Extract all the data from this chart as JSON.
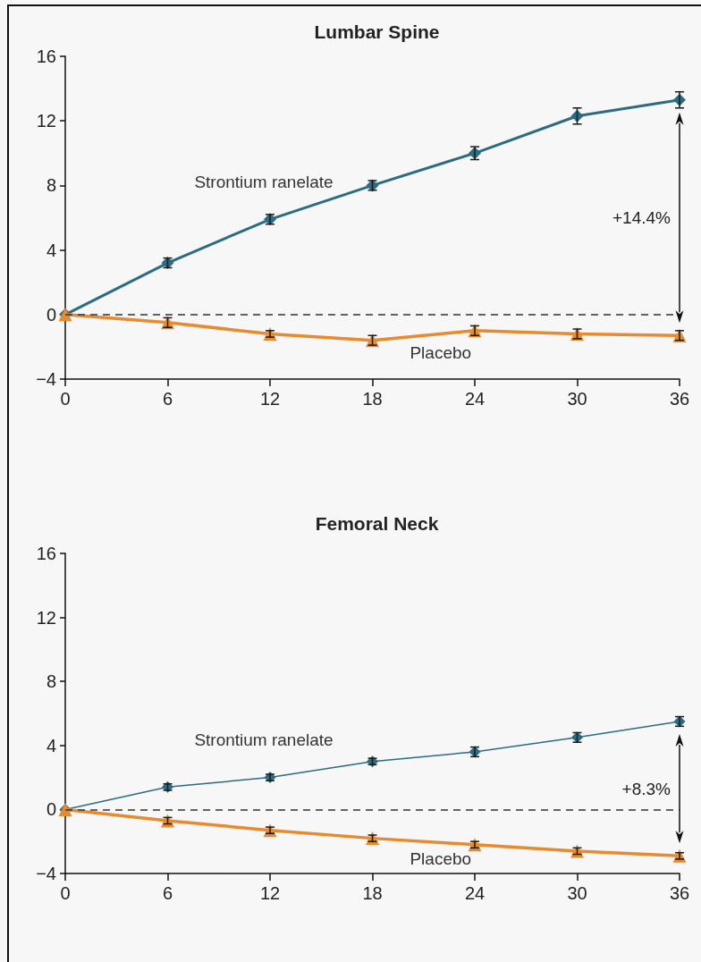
{
  "chart_data": [
    {
      "type": "line",
      "title": "Lumbar Spine",
      "x": [
        0,
        6,
        12,
        18,
        24,
        30,
        36
      ],
      "series": [
        {
          "name": "Strontium ranelate",
          "color": "#2b6c83",
          "marker": "diamond",
          "values": [
            0,
            3.2,
            5.9,
            8.0,
            10.0,
            12.3,
            13.3
          ],
          "errors": [
            null,
            0.3,
            0.3,
            0.3,
            0.4,
            0.5,
            0.5
          ]
        },
        {
          "name": "Placebo",
          "color": "#e88a2e",
          "marker": "triangle",
          "values": [
            0,
            -0.5,
            -1.2,
            -1.6,
            -1.0,
            -1.2,
            -1.3
          ],
          "errors": [
            null,
            0.3,
            0.2,
            0.3,
            0.3,
            0.3,
            0.3
          ]
        }
      ],
      "xlim": [
        0,
        36
      ],
      "xticks": [
        0,
        6,
        12,
        18,
        24,
        30,
        36
      ],
      "ylim": [
        -4,
        16
      ],
      "yticks": [
        {
          "value": -4,
          "label": "−4"
        },
        0,
        4,
        8,
        12,
        16
      ],
      "ref_lines": [
        {
          "axis": "y",
          "value": 0,
          "color": "#333333",
          "line_style": "dashed"
        }
      ],
      "annotations": [
        "+14.4%"
      ]
    },
    {
      "type": "line",
      "title": "Femoral Neck",
      "x": [
        0,
        6,
        12,
        18,
        24,
        30,
        36
      ],
      "series": [
        {
          "name": "Strontium ranelate",
          "color": "#2b6c83",
          "marker": "diamond",
          "values": [
            0,
            1.4,
            2.0,
            3.0,
            3.6,
            4.5,
            5.5
          ],
          "errors": [
            null,
            0.2,
            0.2,
            0.2,
            0.3,
            0.3,
            0.3
          ]
        },
        {
          "name": "Placebo",
          "color": "#e88a2e",
          "marker": "triangle",
          "values": [
            0,
            -0.7,
            -1.3,
            -1.8,
            -2.2,
            -2.6,
            -2.9
          ],
          "errors": [
            null,
            0.2,
            0.2,
            0.2,
            0.2,
            0.2,
            0.2
          ]
        }
      ],
      "xlim": [
        0,
        36
      ],
      "xticks": [
        0,
        6,
        12,
        18,
        24,
        30,
        36
      ],
      "ylim": [
        -4,
        16
      ],
      "yticks": [
        {
          "value": -4,
          "label": "−4"
        },
        0,
        4,
        8,
        12,
        16
      ],
      "ref_lines": [
        {
          "axis": "y",
          "value": 0,
          "color": "#333333",
          "line_style": "dashed"
        }
      ],
      "annotations": [
        "+8.3%"
      ]
    }
  ]
}
